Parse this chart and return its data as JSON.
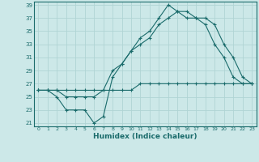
{
  "xlabel": "Humidex (Indice chaleur)",
  "xlim": [
    -0.5,
    23.5
  ],
  "ylim": [
    20.5,
    39.5
  ],
  "xticks": [
    0,
    1,
    2,
    3,
    4,
    5,
    6,
    7,
    8,
    9,
    10,
    11,
    12,
    13,
    14,
    15,
    16,
    17,
    18,
    19,
    20,
    21,
    22,
    23
  ],
  "yticks": [
    21,
    23,
    25,
    27,
    29,
    31,
    33,
    35,
    37,
    39
  ],
  "background_color": "#cce8e8",
  "grid_color": "#b0d4d4",
  "line_color": "#1a6b6b",
  "line1_x": [
    0,
    1,
    2,
    3,
    4,
    5,
    6,
    7,
    8,
    9,
    10,
    11,
    12,
    13,
    14,
    15,
    16,
    17,
    18,
    19,
    20,
    21,
    22,
    23
  ],
  "line1_y": [
    26,
    26,
    26,
    26,
    26,
    26,
    26,
    26,
    26,
    26,
    26,
    27,
    27,
    27,
    27,
    27,
    27,
    27,
    27,
    27,
    27,
    27,
    27,
    27
  ],
  "line2_x": [
    0,
    1,
    2,
    3,
    4,
    5,
    6,
    7,
    8,
    9,
    10,
    11,
    12,
    13,
    14,
    15,
    16,
    17,
    18,
    19,
    20,
    21,
    22,
    23
  ],
  "line2_y": [
    26,
    26,
    25,
    23,
    23,
    23,
    21,
    22,
    28,
    30,
    32,
    34,
    35,
    37,
    39,
    38,
    38,
    37,
    36,
    33,
    31,
    28,
    27,
    27
  ],
  "line3_x": [
    0,
    1,
    2,
    3,
    4,
    5,
    6,
    7,
    8,
    9,
    10,
    11,
    12,
    13,
    14,
    15,
    16,
    17,
    18,
    19,
    20,
    21,
    22,
    23
  ],
  "line3_y": [
    26,
    26,
    26,
    25,
    25,
    25,
    25,
    26,
    29,
    30,
    32,
    33,
    34,
    36,
    37,
    38,
    37,
    37,
    37,
    36,
    33,
    31,
    28,
    27
  ]
}
